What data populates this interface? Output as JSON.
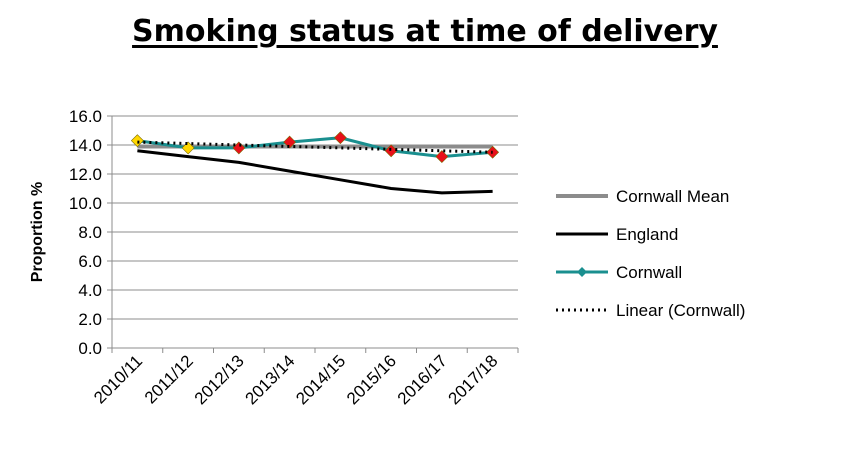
{
  "chart_data": {
    "type": "line",
    "title": "Smoking status at time of delivery",
    "xlabel": "",
    "ylabel": "Proportion %",
    "ylim": [
      0,
      16
    ],
    "ytick_step": 2,
    "y_decimals": 1,
    "grid": true,
    "legend_position": "right",
    "categories": [
      "2010/11",
      "2011/12",
      "2012/13",
      "2013/14",
      "2014/15",
      "2015/16",
      "2016/17",
      "2017/18"
    ],
    "series": [
      {
        "name": "Cornwall Mean",
        "style": "line",
        "color": "#8c8c8c",
        "values": [
          13.9,
          13.9,
          13.9,
          13.9,
          13.9,
          13.9,
          13.9,
          13.9
        ]
      },
      {
        "name": "England",
        "style": "line",
        "color": "#000000",
        "values": [
          13.6,
          13.2,
          12.8,
          12.2,
          11.6,
          11.0,
          10.7,
          10.8
        ]
      },
      {
        "name": "Cornwall",
        "style": "line-marker",
        "color": "#1a8f8f",
        "marker": "diamond",
        "marker_colors": [
          "#ffd700",
          "#ffd700",
          "#e8101a",
          "#e8101a",
          "#e8101a",
          "#e8101a",
          "#e8101a",
          "#e8101a"
        ],
        "values": [
          14.3,
          13.8,
          13.8,
          14.2,
          14.5,
          13.6,
          13.2,
          13.5
        ]
      },
      {
        "name": "Linear (Cornwall)",
        "style": "dotted",
        "color": "#000000",
        "values": [
          14.2,
          14.1,
          14.0,
          13.9,
          13.8,
          13.7,
          13.6,
          13.5
        ]
      }
    ]
  }
}
